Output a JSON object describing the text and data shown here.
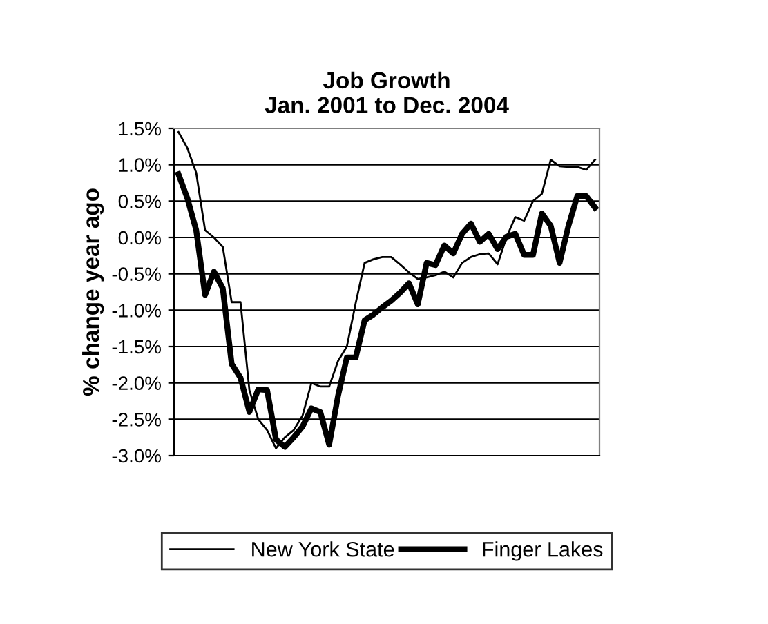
{
  "chart_data": {
    "type": "line",
    "title": "Job Growth\nJan. 2001 to Dec. 2004",
    "ylabel": "% change year ago",
    "categories": [
      null,
      null,
      null,
      null,
      null,
      null,
      null,
      null,
      null,
      null,
      null,
      null,
      null,
      null,
      null,
      null,
      null,
      null,
      null,
      null,
      null,
      null,
      null,
      null,
      null,
      null,
      null,
      null,
      null,
      null,
      null,
      null,
      null,
      null,
      null,
      null,
      null,
      null,
      null,
      null,
      null,
      null,
      null,
      null,
      null,
      null,
      null,
      null
    ],
    "series": [
      {
        "name": "New York State",
        "color": "#000000",
        "values": [
          1.45,
          1.23,
          0.89,
          0.1,
          0.0,
          -0.13,
          -0.89,
          -0.89,
          -2.1,
          -2.5,
          -2.65,
          -2.9,
          -2.75,
          -2.65,
          -2.45,
          -2.0,
          -2.05,
          -2.05,
          -1.7,
          -1.5,
          -0.9,
          -0.35,
          -0.3,
          -0.27,
          -0.27,
          -0.37,
          -0.48,
          -0.57,
          -0.55,
          -0.52,
          -0.47,
          -0.55,
          -0.35,
          -0.27,
          -0.23,
          -0.22,
          -0.37,
          0.0,
          0.28,
          0.23,
          0.5,
          0.6,
          1.07,
          0.98,
          0.97,
          0.97,
          0.93,
          1.07
        ]
      },
      {
        "name": "Finger Lakes",
        "color": "#000000",
        "values": [
          0.87,
          0.54,
          0.1,
          -0.79,
          -0.47,
          -0.7,
          -1.74,
          -1.93,
          -2.4,
          -2.09,
          -2.1,
          -2.78,
          -2.88,
          -2.75,
          -2.6,
          -2.35,
          -2.4,
          -2.85,
          -2.18,
          -1.65,
          -1.65,
          -1.14,
          -1.06,
          -0.96,
          -0.87,
          -0.76,
          -0.63,
          -0.92,
          -0.35,
          -0.38,
          -0.11,
          -0.22,
          0.05,
          0.19,
          -0.06,
          0.05,
          -0.16,
          0.01,
          0.05,
          -0.24,
          -0.24,
          0.33,
          0.16,
          -0.35,
          0.16,
          0.57,
          0.57,
          0.41
        ]
      }
    ],
    "ylim": [
      -3.0,
      1.5
    ],
    "yticks": [
      {
        "value": -3.0,
        "label": "-3.0%"
      },
      {
        "value": -2.5,
        "label": "-2.5%"
      },
      {
        "value": -2.0,
        "label": "-2.0%"
      },
      {
        "value": -1.5,
        "label": "-1.5%"
      },
      {
        "value": -1.0,
        "label": "-1.0%"
      },
      {
        "value": -0.5,
        "label": "-0.5%"
      },
      {
        "value": 0.0,
        "label": "0.0%"
      },
      {
        "value": 0.5,
        "label": "0.5%"
      },
      {
        "value": 1.0,
        "label": "1.0%"
      },
      {
        "value": 1.5,
        "label": "1.5%"
      }
    ],
    "grid": "y",
    "legend": "bottom",
    "tick_labels": "y",
    "marker": "none",
    "line_style": "solid"
  }
}
